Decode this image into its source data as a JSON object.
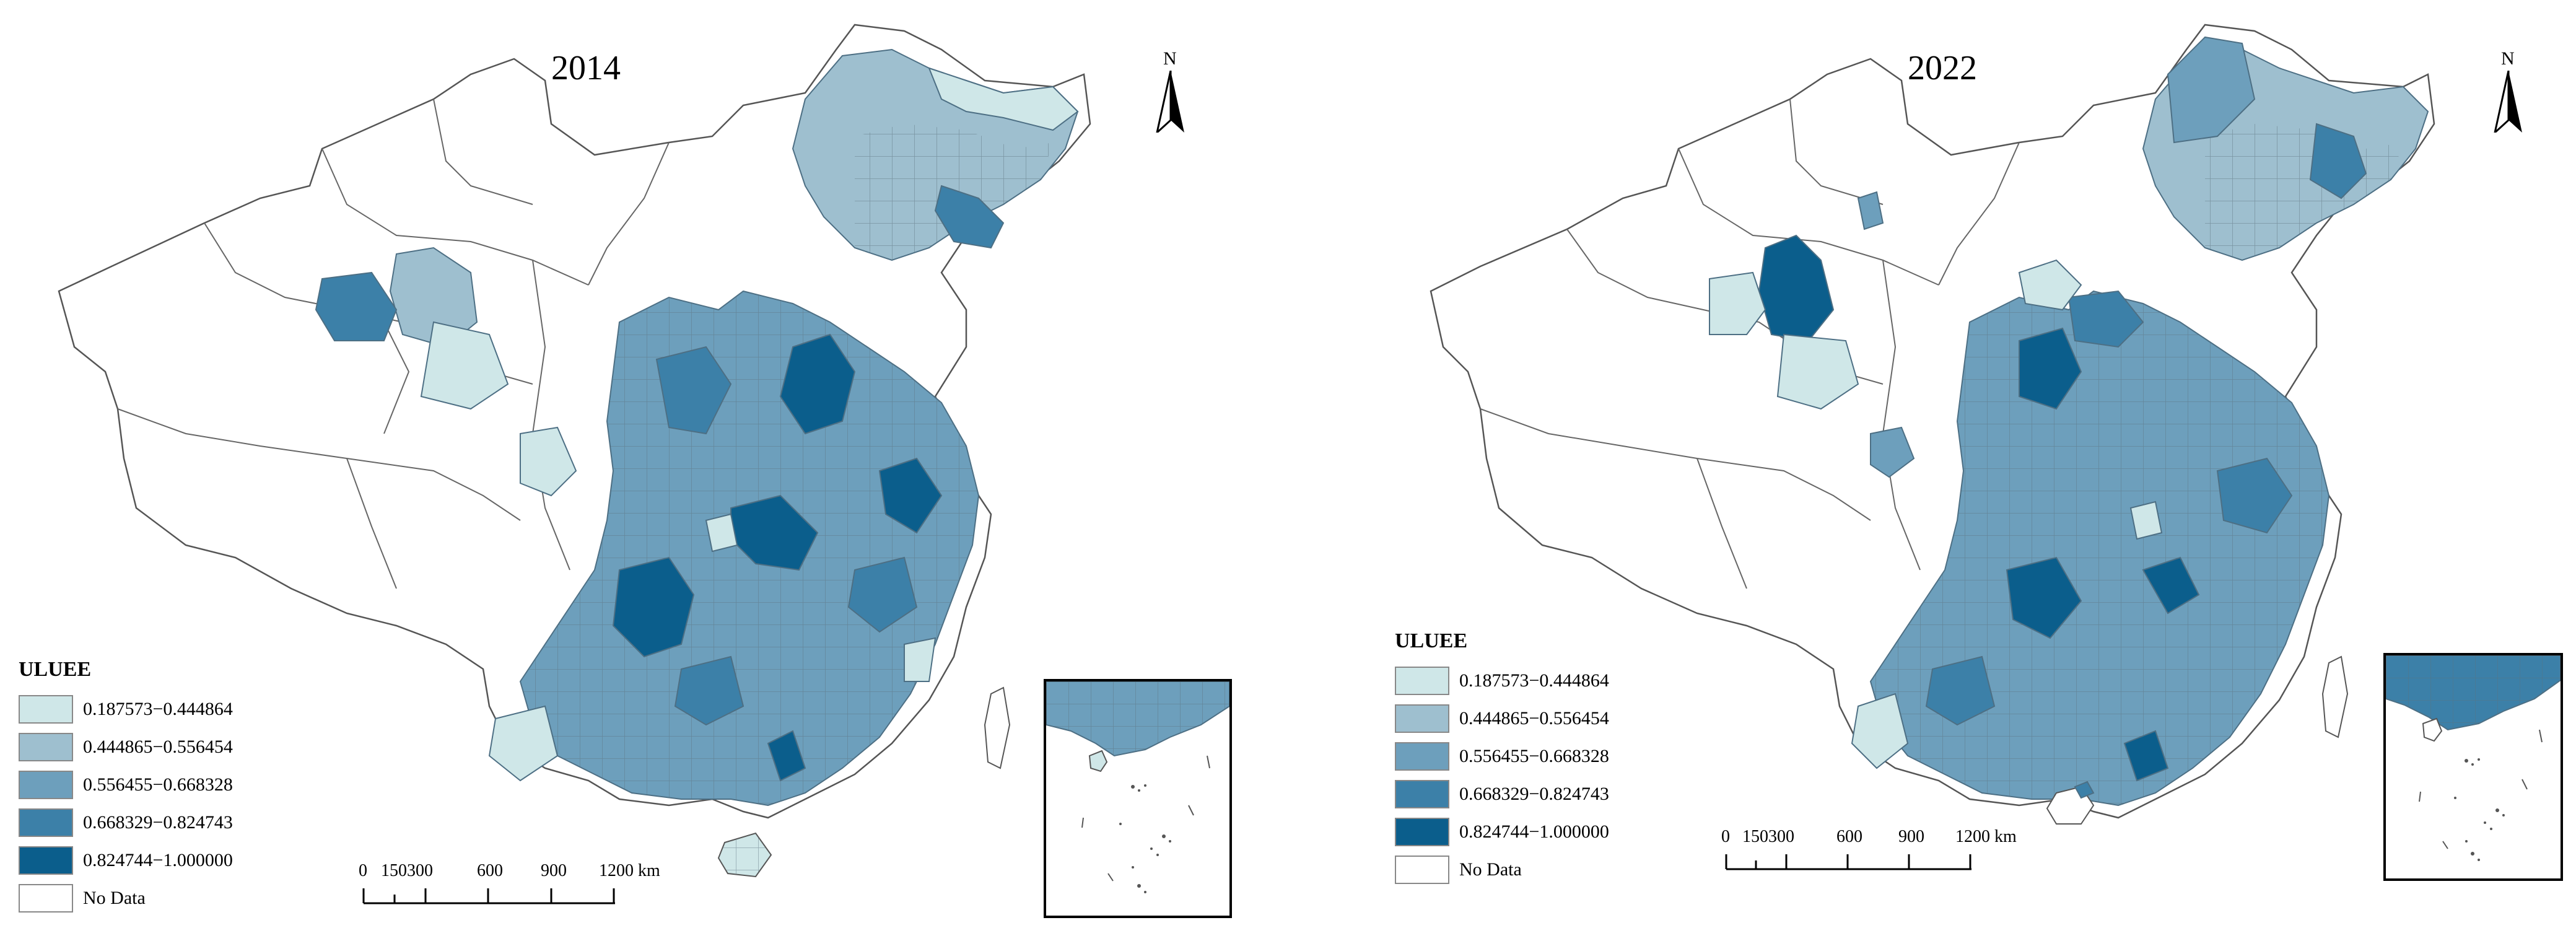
{
  "panels": [
    {
      "year": "2014",
      "north": "N",
      "scale_ticks": [
        "0",
        "150300",
        "600",
        "900",
        "1200 km"
      ]
    },
    {
      "year": "2022",
      "north": "N",
      "scale_ticks": [
        "0",
        "150300",
        "600",
        "900",
        "1200 km"
      ]
    }
  ],
  "legend": {
    "title": "ULUEE",
    "classes": [
      {
        "label": "0.187573−0.444864",
        "color": "#cfe7e8"
      },
      {
        "label": "0.444865−0.556454",
        "color": "#9ebfcf"
      },
      {
        "label": "0.556455−0.668328",
        "color": "#6d9fbc"
      },
      {
        "label": "0.668329−0.824743",
        "color": "#3c80a8"
      },
      {
        "label": "0.824744−1.000000",
        "color": "#0b5e8c"
      },
      {
        "label": "No Data",
        "color": "#ffffff"
      }
    ]
  }
}
